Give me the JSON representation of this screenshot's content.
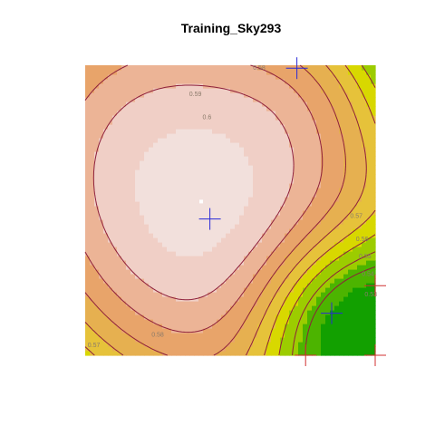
{
  "chart_data": {
    "type": "heatmap",
    "title": "Training_Sky293",
    "xlabel": "",
    "ylabel": "",
    "xlim": [
      0,
      1
    ],
    "ylim": [
      0,
      1
    ],
    "grid": false,
    "legend": "none",
    "color_scale": {
      "stops": [
        {
          "value": 0.52,
          "color": "#12a000"
        },
        {
          "value": 0.535,
          "color": "#4cb400"
        },
        {
          "value": 0.55,
          "color": "#9ccc00"
        },
        {
          "value": 0.56,
          "color": "#d8d800"
        },
        {
          "value": 0.57,
          "color": "#e6c23a"
        },
        {
          "value": 0.58,
          "color": "#e6b050"
        },
        {
          "value": 0.59,
          "color": "#e8a46a"
        },
        {
          "value": 0.6,
          "color": "#ecb496"
        },
        {
          "value": 0.61,
          "color": "#f0cfc6"
        },
        {
          "value": 0.615,
          "color": "#f2e0dc"
        }
      ]
    },
    "contour_color": "#8e1f3a",
    "contours": [
      {
        "level": 0.6,
        "label": "0.6",
        "label_at": [
          0.42,
          0.82
        ]
      },
      {
        "level": 0.59,
        "label": "0.59",
        "label_at": [
          0.38,
          0.9
        ]
      },
      {
        "level": 0.58,
        "label": "0.58",
        "label_at": [
          0.25,
          0.07
        ]
      },
      {
        "level": 0.58,
        "label": "0.58",
        "label_at": [
          0.6,
          0.99
        ]
      },
      {
        "level": 0.57,
        "label": "0.57",
        "label_at": [
          0.03,
          0.035
        ]
      },
      {
        "level": 0.57,
        "label": "0.57",
        "label_at": [
          0.935,
          0.48
        ]
      },
      {
        "level": 0.56,
        "label": "0.56",
        "label_at": [
          0.955,
          0.4
        ]
      },
      {
        "level": 0.55,
        "label": "0.55",
        "label_at": [
          0.965,
          0.34
        ]
      },
      {
        "level": 0.54,
        "label": "0.54",
        "label_at": [
          0.975,
          0.28
        ]
      },
      {
        "level": 0.53,
        "label": "0.53",
        "label_at": [
          0.985,
          0.21
        ]
      }
    ],
    "max_point": {
      "x": 0.4,
      "y": 0.53
    },
    "markers": [
      {
        "name": "blue",
        "color": "#2a2ad8",
        "x": 0.43,
        "y": 0.47
      },
      {
        "name": "blue",
        "color": "#2a2ad8",
        "x": 0.73,
        "y": 0.99
      },
      {
        "name": "blue",
        "color": "#2a2ad8",
        "x": 0.85,
        "y": 0.145
      },
      {
        "name": "red",
        "color": "#d03030",
        "x": 1.0,
        "y": 0.24
      },
      {
        "name": "red",
        "color": "#d03030",
        "x": 0.76,
        "y": 0.0
      },
      {
        "name": "red",
        "color": "#d03030",
        "x": 1.0,
        "y": 0.0
      }
    ]
  }
}
